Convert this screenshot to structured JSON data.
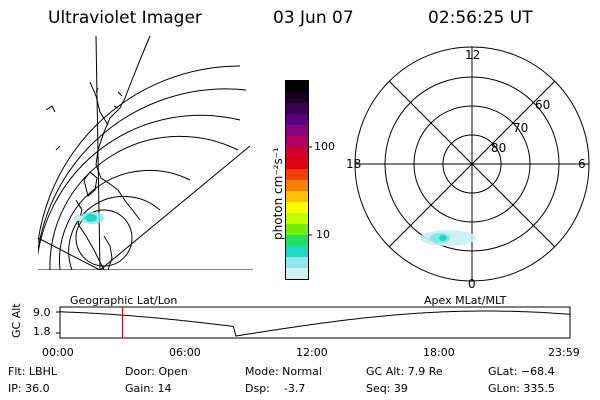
{
  "header": {
    "instrument": "Ultraviolet Imager",
    "date": "03 Jun 07",
    "time": "02:56:25 UT"
  },
  "colorbar": {
    "unit_label": "photon cm⁻²s⁻¹",
    "ticks": [
      "100",
      "10"
    ],
    "colors": [
      "#000000",
      "#1a0020",
      "#3a0050",
      "#5a0080",
      "#8a0080",
      "#b00060",
      "#d00030",
      "#e00010",
      "#f04000",
      "#f88000",
      "#ffc000",
      "#ffff00",
      "#c0ff00",
      "#70f000",
      "#20e060",
      "#20d8c8",
      "#90e8ee",
      "#d0f2f4"
    ]
  },
  "left_map": {
    "caption": "Geographic Lat/Lon"
  },
  "right_map": {
    "caption": "Apex MLat/MLT",
    "mlt_labels": {
      "top": "12",
      "left": "18",
      "right": "6",
      "bottom": "0"
    },
    "lat_labels": [
      "60",
      "70",
      "80"
    ]
  },
  "altitude_plot": {
    "y_label": "GC Alt",
    "y_ticks": [
      "9.0",
      "1.8"
    ],
    "x_ticks": [
      "00:00",
      "06:00",
      "12:00",
      "18:00",
      "23:59"
    ],
    "current_time_hours": 2.94,
    "marker_color": "#d00000"
  },
  "info": {
    "flt": "Flt: LBHL",
    "ip": "IP: 36.0",
    "door": "Door: Open",
    "gain": "Gain: 14",
    "mode": "Mode: Normal",
    "dsp": "Dsp:    -3.7",
    "gc_alt": "GC Alt: 7.9 Re",
    "seq": "Seq: 39",
    "glat": "GLat: −68.4",
    "glon": "GLon: 335.5"
  }
}
